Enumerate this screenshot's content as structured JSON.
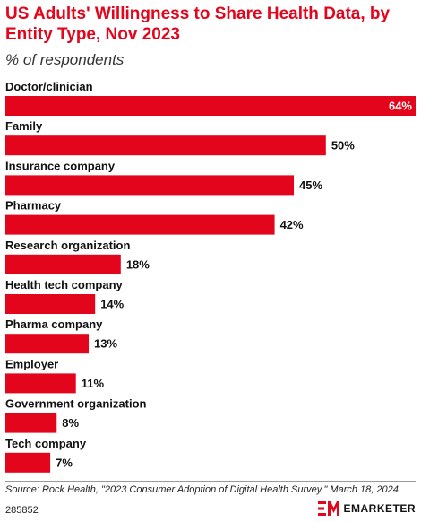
{
  "chart_data": {
    "type": "bar",
    "orientation": "horizontal",
    "title": "US Adults' Willingness to Share Health Data, by Entity Type, Nov 2023",
    "subtitle": "% of respondents",
    "categories": [
      "Doctor/clinician",
      "Family",
      "Insurance company",
      "Pharmacy",
      "Research organization",
      "Health tech company",
      "Pharma company",
      "Employer",
      "Government organization",
      "Tech company"
    ],
    "values": [
      64,
      50,
      45,
      42,
      18,
      14,
      13,
      11,
      8,
      7
    ],
    "value_labels": [
      "64%",
      "50%",
      "45%",
      "42%",
      "18%",
      "14%",
      "13%",
      "11%",
      "8%",
      "7%"
    ],
    "xlim": [
      0,
      64
    ],
    "grid": false,
    "legend": "none",
    "bar_color": "#e3051b"
  },
  "footer": {
    "source": "Source: Rock Health, \"2023 Consumer Adoption of Digital Health Survey,\" March 18, 2024",
    "chart_id": "285852",
    "brand_name": "EMARKETER"
  },
  "colors": {
    "accent": "#e3051b",
    "text": "#111111"
  },
  "icons": {
    "brand_logo": "emarketer-logo-icon"
  }
}
